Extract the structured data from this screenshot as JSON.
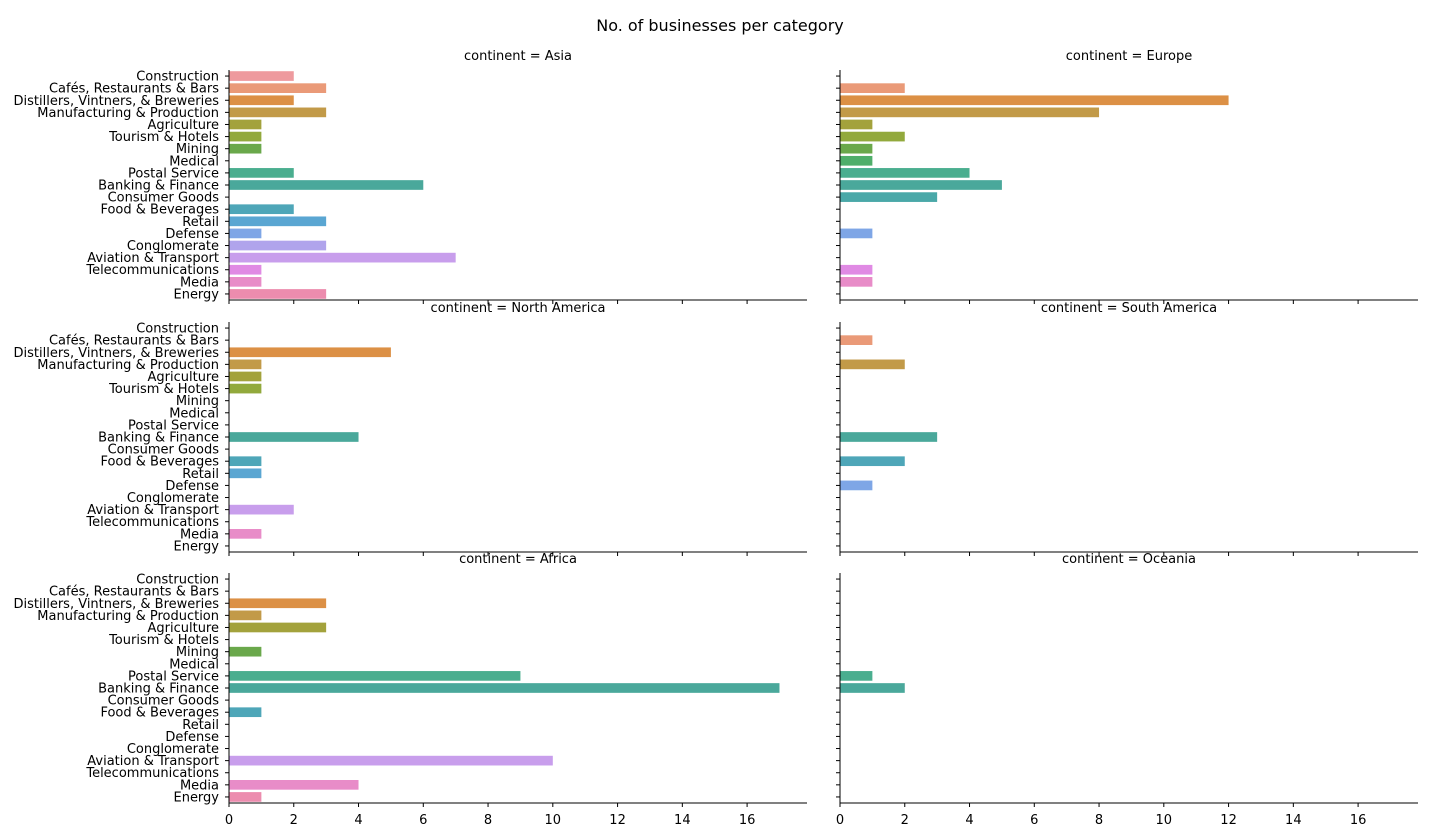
{
  "chart_data": {
    "type": "bar",
    "orientation": "horizontal",
    "title": "No. of businesses per category",
    "xlim": [
      0,
      17.85
    ],
    "xticks": [
      0,
      2,
      4,
      6,
      8,
      10,
      12,
      14,
      16
    ],
    "grid": false,
    "categories": [
      "Construction",
      "Cafés, Restaurants & Bars",
      "Distillers, Vintners, & Breweries",
      "Manufacturing & Production",
      "Agriculture",
      "Tourism & Hotels",
      "Mining",
      "Medical",
      "Postal Service",
      "Banking & Finance",
      "Consumer Goods",
      "Food & Beverages",
      "Retail",
      "Defense",
      "Conglomerate",
      "Aviation & Transport",
      "Telecommunications",
      "Media",
      "Energy"
    ],
    "colors": [
      "#ee9a9e",
      "#ea9a78",
      "#dc9045",
      "#c29a48",
      "#a3a23c",
      "#92a93c",
      "#6aa84b",
      "#4fae6a",
      "#4aae8f",
      "#4aa89b",
      "#4aa8a8",
      "#4ea6b8",
      "#5aa6d2",
      "#7ea6e6",
      "#b0a4ec",
      "#c89eec",
      "#e08ae4",
      "#e88cc8",
      "#ec8cae"
    ],
    "panels": [
      {
        "title": "continent = Asia",
        "values": [
          2,
          3,
          2,
          3,
          1,
          1,
          1,
          0,
          2,
          6,
          0,
          2,
          3,
          1,
          3,
          7,
          1,
          1,
          3
        ]
      },
      {
        "title": "continent = Europe",
        "values": [
          0,
          2,
          12,
          8,
          1,
          2,
          1,
          1,
          4,
          5,
          3,
          0,
          0,
          1,
          0,
          0,
          1,
          1,
          0
        ]
      },
      {
        "title": "continent = North America",
        "values": [
          0,
          0,
          5,
          1,
          1,
          1,
          0,
          0,
          0,
          4,
          0,
          1,
          1,
          0,
          0,
          2,
          0,
          1,
          0
        ]
      },
      {
        "title": "continent = South America",
        "values": [
          0,
          1,
          0,
          2,
          0,
          0,
          0,
          0,
          0,
          3,
          0,
          2,
          0,
          1,
          0,
          0,
          0,
          0,
          0
        ]
      },
      {
        "title": "continent = Africa",
        "values": [
          0,
          0,
          3,
          1,
          3,
          0,
          1,
          0,
          9,
          17,
          0,
          1,
          0,
          0,
          0,
          10,
          0,
          4,
          1
        ]
      },
      {
        "title": "continent = Oceania",
        "values": [
          0,
          0,
          0,
          0,
          0,
          0,
          0,
          0,
          1,
          2,
          0,
          0,
          0,
          0,
          0,
          0,
          0,
          0,
          0
        ]
      }
    ]
  }
}
